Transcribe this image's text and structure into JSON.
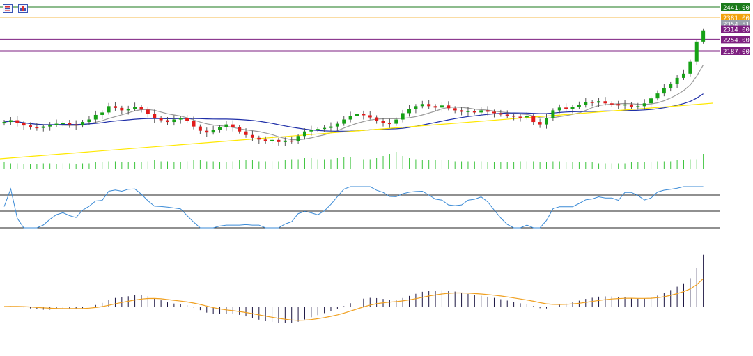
{
  "toolbar": {
    "icons": [
      "chart-settings-icon",
      "indicator-toggle-icon"
    ]
  },
  "chart_data": {
    "type": "candlestick",
    "levels": [
      {
        "value": 2441.0,
        "label": "2441.00",
        "color": "#1b7a1b"
      },
      {
        "value": 2381.0,
        "label": "2381.00",
        "color": "#f2a20c"
      },
      {
        "value": 2354.51,
        "label": "2354.51",
        "color": "#9aa0ac"
      },
      {
        "value": 2314.0,
        "label": "2314.00",
        "color": "#7d1f80"
      },
      {
        "value": 2254.0,
        "label": "2254.00",
        "color": "#7d1f80"
      },
      {
        "value": 2187.0,
        "label": "2187.00",
        "color": "#7d1f80"
      }
    ],
    "colors": {
      "up": "#16a116",
      "down": "#e21b1b",
      "ma_fast": "#9a9a9a",
      "ma_mid": "#1f2fa8",
      "ma_slow": "#ffe800",
      "volume": "#3cc43c",
      "rsi": "#3a8ad6",
      "macd_hist": "#1a1440",
      "macd_signal": "#f0a020"
    },
    "candles_close": [
      1985,
      1990,
      1982,
      1975,
      1970,
      1968,
      1972,
      1976,
      1980,
      1982,
      1978,
      1975,
      1985,
      1992,
      2005,
      2012,
      2030,
      2025,
      2018,
      2022,
      2028,
      2020,
      2008,
      1995,
      1990,
      1985,
      1992,
      1996,
      1988,
      1972,
      1960,
      1955,
      1962,
      1970,
      1978,
      1970,
      1958,
      1948,
      1940,
      1935,
      1930,
      1934,
      1928,
      1932,
      1930,
      1945,
      1958,
      1962,
      1965,
      1968,
      1972,
      1980,
      1992,
      2002,
      2008,
      2004,
      1998,
      1988,
      1982,
      1980,
      1992,
      2010,
      2022,
      2030,
      2036,
      2030,
      2026,
      2032,
      2024,
      2018,
      2014,
      2016,
      2012,
      2018,
      2014,
      2010,
      2006,
      2003,
      2000,
      1998,
      2001,
      1985,
      1978,
      1995,
      2018,
      2026,
      2022,
      2028,
      2034,
      2042,
      2040,
      2044,
      2038,
      2036,
      2032,
      2035,
      2028,
      2030,
      2038,
      2052,
      2066,
      2082,
      2094,
      2110,
      2122,
      2156,
      2240,
      2305
    ],
    "volume": [
      6,
      5,
      5,
      4,
      4,
      4,
      5,
      5,
      4,
      5,
      5,
      4,
      5,
      5,
      6,
      6,
      7,
      7,
      6,
      6,
      6,
      6,
      7,
      8,
      7,
      7,
      6,
      6,
      7,
      8,
      8,
      7,
      7,
      6,
      6,
      7,
      8,
      8,
      8,
      7,
      7,
      7,
      7,
      8,
      9,
      9,
      10,
      10,
      9,
      9,
      9,
      10,
      11,
      11,
      10,
      9,
      9,
      10,
      12,
      14,
      16,
      12,
      10,
      9,
      8,
      8,
      8,
      8,
      8,
      7,
      7,
      7,
      7,
      7,
      6,
      6,
      6,
      6,
      6,
      7,
      7,
      7,
      6,
      6,
      7,
      7,
      6,
      6,
      6,
      6,
      6,
      5,
      5,
      5,
      5,
      5,
      6,
      6,
      6,
      6,
      7,
      7,
      7,
      8,
      8,
      9,
      9,
      14
    ],
    "rsi_levels": [
      70,
      50,
      30
    ]
  }
}
